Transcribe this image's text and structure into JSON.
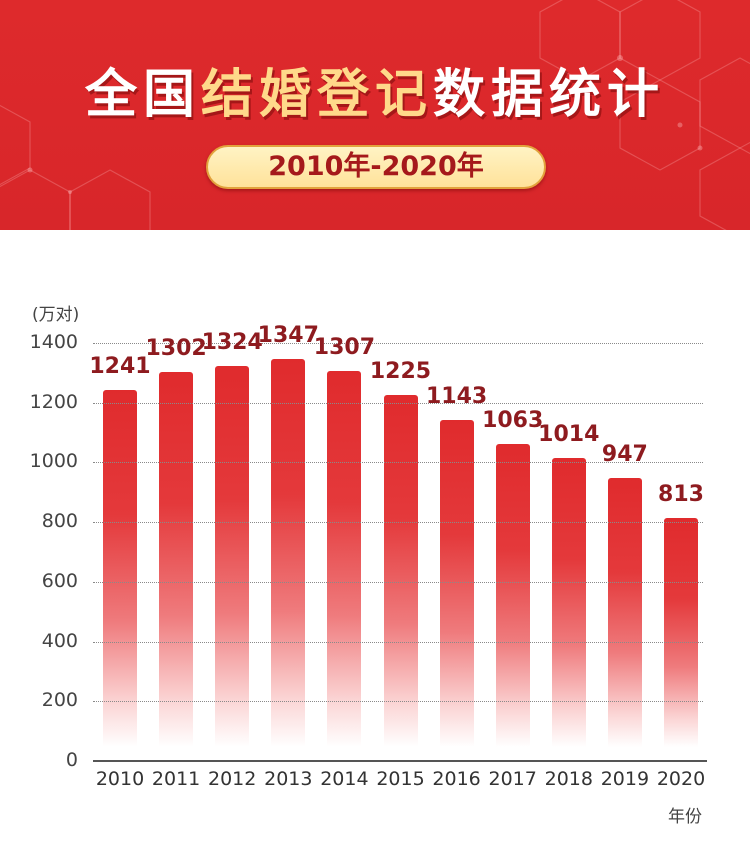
{
  "header": {
    "title_parts": [
      {
        "text": "全国",
        "style": "white"
      },
      {
        "text": "结婚登记",
        "style": "gold"
      },
      {
        "text": "数据统计",
        "style": "white"
      }
    ],
    "subtitle": "2010年-2020年"
  },
  "colors": {
    "header_bg": "#d9272a",
    "title_white": "#ffffff",
    "title_gold": "#ffd98a",
    "pill_bg": "#ffe9a8",
    "pill_text": "#a5191b",
    "bar_top": "#e02b2d",
    "value_label": "#8e1b1f"
  },
  "chart_data": {
    "type": "bar",
    "title": "全国结婚登记数据统计 2010年-2020年",
    "categories": [
      "2010",
      "2011",
      "2012",
      "2013",
      "2014",
      "2015",
      "2016",
      "2017",
      "2018",
      "2019",
      "2020"
    ],
    "values": [
      1241,
      1302,
      1324,
      1347,
      1307,
      1225,
      1143,
      1063,
      1014,
      947,
      813
    ],
    "xlabel": "年份",
    "ylabel": "(万对)",
    "ylim": [
      0,
      1400
    ],
    "yticks": [
      "0",
      "200",
      "400",
      "600",
      "800",
      "1000",
      "1200",
      "1400"
    ],
    "grid": true,
    "data_labels": true,
    "legend": "none"
  }
}
